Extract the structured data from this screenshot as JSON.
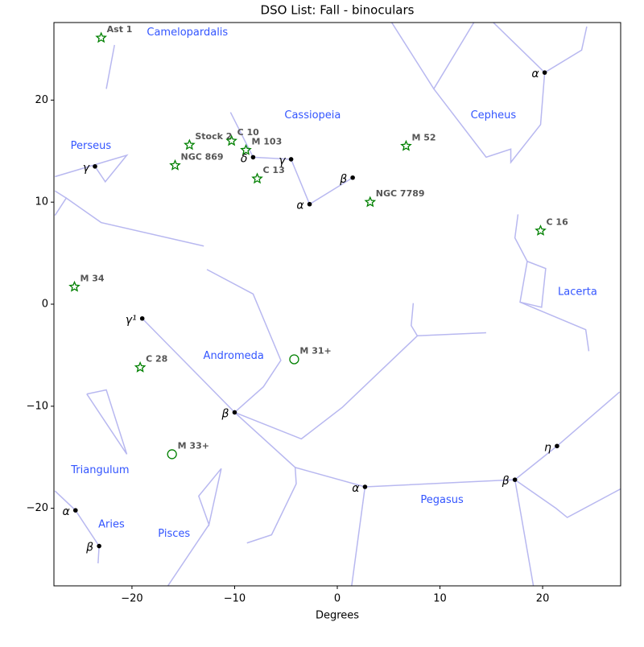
{
  "chart_data": {
    "type": "starmap",
    "title": "DSO List: Fall - binoculars",
    "xlabel": "Degrees",
    "xlim": [
      -27.6,
      27.6
    ],
    "ylim": [
      -27.6,
      27.6
    ],
    "xticks": [
      {
        "value": -20,
        "label": "−20"
      },
      {
        "value": -10,
        "label": "−10"
      },
      0,
      10,
      20
    ],
    "yticks": [
      {
        "value": -20,
        "label": "−20"
      },
      {
        "value": -10,
        "label": "−10"
      },
      0,
      10,
      20
    ],
    "line_color": "#b8b8f0",
    "dso_color": "#008000",
    "constellation_color": "#3355ff",
    "dsos": {
      "names": [
        "Ast 1",
        "Stock 2",
        "C 10",
        "M 103",
        "NGC 869",
        "C 13",
        "M 52",
        "NGC 7789",
        "C 16",
        "M 34",
        "C 28",
        "M 31+",
        "M 33+"
      ],
      "x": [
        -23.0,
        -14.4,
        -10.3,
        -8.9,
        -15.8,
        -7.8,
        6.7,
        3.2,
        19.8,
        -25.6,
        -19.2,
        -4.2,
        -16.1
      ],
      "y": [
        26.1,
        15.6,
        16.0,
        15.1,
        13.6,
        12.3,
        15.5,
        10.0,
        7.2,
        1.7,
        -6.2,
        -5.4,
        -14.7
      ],
      "markers": [
        "star",
        "star",
        "star",
        "star",
        "star",
        "star",
        "star",
        "star",
        "star",
        "star",
        "star",
        "circle",
        "circle"
      ]
    },
    "constellations": {
      "names": [
        "Camelopardalis",
        "Cassiopeia",
        "Cepheus",
        "Perseus",
        "Lacerta",
        "Andromeda",
        "Triangulum",
        "Pegasus",
        "Aries",
        "Pisces"
      ],
      "x": [
        -14.6,
        -2.4,
        15.2,
        -24.0,
        23.4,
        -10.1,
        -23.1,
        10.2,
        -22.0,
        -15.9
      ],
      "y": [
        26.6,
        18.5,
        18.5,
        15.5,
        1.2,
        -5.1,
        -16.3,
        -19.2,
        -21.6,
        -22.5
      ]
    },
    "stars": {
      "labels": [
        "α",
        "γ",
        "δ",
        "β",
        "α",
        "γ",
        "γ¹",
        "β",
        "α",
        "β",
        "η",
        "α",
        "β"
      ],
      "x": [
        20.2,
        -4.5,
        -8.2,
        1.5,
        -2.7,
        -23.6,
        -19.0,
        -10.0,
        2.7,
        17.3,
        21.4,
        -25.5,
        -23.2
      ],
      "y": [
        22.7,
        14.2,
        14.4,
        12.4,
        9.8,
        13.5,
        -1.4,
        -10.6,
        -17.9,
        -17.2,
        -13.9,
        -20.2,
        -23.7
      ]
    },
    "constellation_lines": [
      {
        "x": [
          -21.7,
          -22.5
        ],
        "y": [
          25.4,
          21.1
        ]
      },
      {
        "x": [
          5.3,
          9.4,
          13.3
        ],
        "y": [
          27.6,
          21.1,
          27.6
        ]
      },
      {
        "x": [
          15.2,
          20.2,
          23.8,
          24.3
        ],
        "y": [
          27.6,
          22.7,
          24.9,
          27.2
        ]
      },
      {
        "x": [
          9.4,
          14.5,
          16.9,
          16.9,
          19.8,
          20.2
        ],
        "y": [
          21.1,
          14.4,
          15.2,
          13.9,
          17.6,
          22.7
        ]
      },
      {
        "x": [
          -10.4,
          -8.2,
          -4.5,
          -2.7,
          1.5
        ],
        "y": [
          18.8,
          14.4,
          14.2,
          9.8,
          12.4
        ]
      },
      {
        "x": [
          -27.5,
          -20.5,
          -22.6,
          -23.6
        ],
        "y": [
          12.5,
          14.6,
          12.0,
          13.5
        ]
      },
      {
        "x": [
          -27.5,
          -26.4,
          -23.0,
          -13.0
        ],
        "y": [
          8.7,
          10.4,
          8.0,
          5.7
        ]
      },
      {
        "x": [
          -27.5,
          -26.4
        ],
        "y": [
          11.1,
          10.4
        ]
      },
      {
        "x": [
          17.6,
          17.3,
          18.5,
          20.3,
          19.9,
          17.8,
          18.5
        ],
        "y": [
          8.8,
          6.5,
          4.2,
          3.5,
          -0.3,
          0.2,
          4.2
        ]
      },
      {
        "x": [
          17.8,
          24.2,
          24.5
        ],
        "y": [
          0.2,
          -2.5,
          -4.6
        ]
      },
      {
        "x": [
          -19.0,
          -10.0,
          -7.2,
          -5.5,
          -8.2,
          -12.7
        ],
        "y": [
          -1.4,
          -10.6,
          -8.1,
          -5.5,
          1.0,
          3.4
        ]
      },
      {
        "x": [
          -10.0,
          -3.5,
          0.5,
          7.8,
          7.2,
          7.4
        ],
        "y": [
          -10.6,
          -13.2,
          -10.1,
          -3.1,
          -2.1,
          0.1
        ]
      },
      {
        "x": [
          7.8,
          14.5
        ],
        "y": [
          -3.1,
          -2.8
        ]
      },
      {
        "x": [
          -10.0,
          -4.1,
          -4.0,
          -6.4,
          -8.8
        ],
        "y": [
          -10.6,
          -16.0,
          -17.6,
          -22.6,
          -23.4
        ]
      },
      {
        "x": [
          -4.1,
          2.7,
          17.3,
          21.4,
          27.5
        ],
        "y": [
          -16.0,
          -17.9,
          -17.2,
          -13.9,
          -8.6
        ]
      },
      {
        "x": [
          2.7,
          1.4
        ],
        "y": [
          -17.9,
          -27.6
        ]
      },
      {
        "x": [
          17.3,
          19.1
        ],
        "y": [
          -17.2,
          -27.6
        ]
      },
      {
        "x": [
          17.3,
          21.3,
          22.4,
          27.6
        ],
        "y": [
          -17.2,
          -20.0,
          -20.9,
          -18.1
        ]
      },
      {
        "x": [
          -24.4,
          -22.5,
          -20.5,
          -24.4
        ],
        "y": [
          -8.8,
          -8.4,
          -14.7,
          -8.8
        ]
      },
      {
        "x": [
          -11.3,
          -12.5,
          -13.5,
          -11.3
        ],
        "y": [
          -16.1,
          -21.6,
          -18.8,
          -16.1
        ]
      },
      {
        "x": [
          -12.5,
          -16.5
        ],
        "y": [
          -21.6,
          -27.6
        ]
      },
      {
        "x": [
          -27.5,
          -25.5,
          -23.2,
          -23.3
        ],
        "y": [
          -18.3,
          -20.2,
          -23.7,
          -25.4
        ]
      }
    ]
  }
}
